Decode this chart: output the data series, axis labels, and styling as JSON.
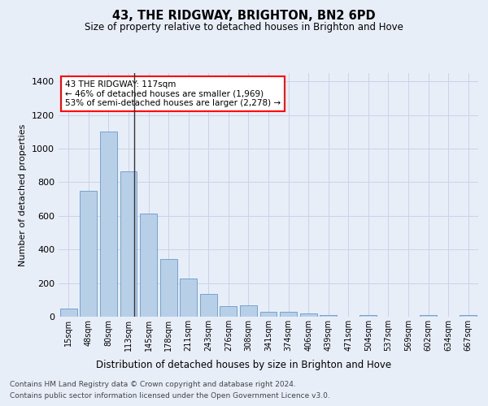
{
  "title": "43, THE RIDGWAY, BRIGHTON, BN2 6PD",
  "subtitle": "Size of property relative to detached houses in Brighton and Hove",
  "xlabel": "Distribution of detached houses by size in Brighton and Hove",
  "ylabel": "Number of detached properties",
  "footnote1": "Contains HM Land Registry data © Crown copyright and database right 2024.",
  "footnote2": "Contains public sector information licensed under the Open Government Licence v3.0.",
  "annotation_line1": "43 THE RIDGWAY: 117sqm",
  "annotation_line2": "← 46% of detached houses are smaller (1,969)",
  "annotation_line3": "53% of semi-detached houses are larger (2,278) →",
  "bar_color": "#b8cfe8",
  "bar_edge_color": "#6699cc",
  "marker_color": "#333333",
  "categories": [
    "15sqm",
    "48sqm",
    "80sqm",
    "113sqm",
    "145sqm",
    "178sqm",
    "211sqm",
    "243sqm",
    "276sqm",
    "308sqm",
    "341sqm",
    "374sqm",
    "406sqm",
    "439sqm",
    "471sqm",
    "504sqm",
    "537sqm",
    "569sqm",
    "602sqm",
    "634sqm",
    "667sqm"
  ],
  "values": [
    50,
    750,
    1100,
    865,
    615,
    345,
    225,
    135,
    65,
    70,
    30,
    30,
    20,
    12,
    0,
    12,
    0,
    0,
    12,
    0,
    12
  ],
  "ylim": [
    0,
    1450
  ],
  "yticks": [
    0,
    200,
    400,
    600,
    800,
    1000,
    1200,
    1400
  ],
  "grid_color": "#c8d4e8",
  "bg_color": "#e8eef8",
  "marker_bar_index": 3
}
